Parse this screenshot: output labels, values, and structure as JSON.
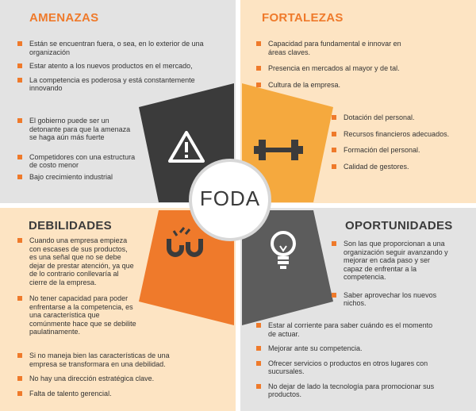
{
  "center_label": "FODA",
  "colors": {
    "gray_panel": "#e3e3e3",
    "peach_panel": "#fde4c3",
    "orange": "#ef7a2b",
    "light_orange": "#f5a93e",
    "dark": "#3b3b3b",
    "dark_gray": "#5c5c5c"
  },
  "amenazas": {
    "title": "AMENAZAS",
    "icon": "warning-icon",
    "items": [
      "Están se encuentran fuera, o sea, en lo exterior de una organización",
      "Estar atento a los nuevos productos en el mercado,",
      "La competencia es poderosa y está constantemente innovando"
    ],
    "items_lower": [
      "El gobierno puede ser un detonante para que la amenaza se haga aún más fuerte",
      "Competidores con una estructura de costo menor",
      "Bajo crecimiento industrial"
    ]
  },
  "fortalezas": {
    "title": "FORTALEZAS",
    "icon": "dumbbell-icon",
    "items": [
      "Capacidad para fundamental e innovar en áreas claves.",
      "Presencia en mercados al mayor y de tal.",
      "Cultura de la empresa."
    ],
    "items_lower": [
      "Dotación del personal.",
      "Recursos financieros adecuados.",
      "Formación del personal.",
      "Calidad de gestores."
    ]
  },
  "debilidades": {
    "title": "DEBILIDADES",
    "icon": "broken-magnet-icon",
    "items": [
      "Cuando una empresa empieza con escases de sus productos, es una señal que no se debe dejar de prestar atención, ya que de lo contrario conllevaría al cierre de la empresa.",
      "No tener capacidad para poder enfrentarse a la competencia, es una característica que comúnmente hace que se debilite paulatinamente.",
      "Si no maneja bien las características de una empresa se transformara en una debilidad.",
      "No hay una dirección estratégica clave.",
      "Falta de talento gerencial."
    ]
  },
  "oportunidades": {
    "title": "OPORTUNIDADES",
    "icon": "lightbulb-icon",
    "items": [
      "Son las que proporcionan a una organización seguir avanzando y mejorar en cada paso y ser capaz de enfrentar a la competencia.",
      "Saber aprovechar los nuevos nichos."
    ],
    "items_lower": [
      "Estar al corriente para saber cuándo es el momento de  actuar.",
      "Mejorar ante su competencia.",
      "Ofrecer servicios o productos en otros lugares con sucursales.",
      "No dejar de lado la tecnología para promocionar sus productos."
    ]
  }
}
